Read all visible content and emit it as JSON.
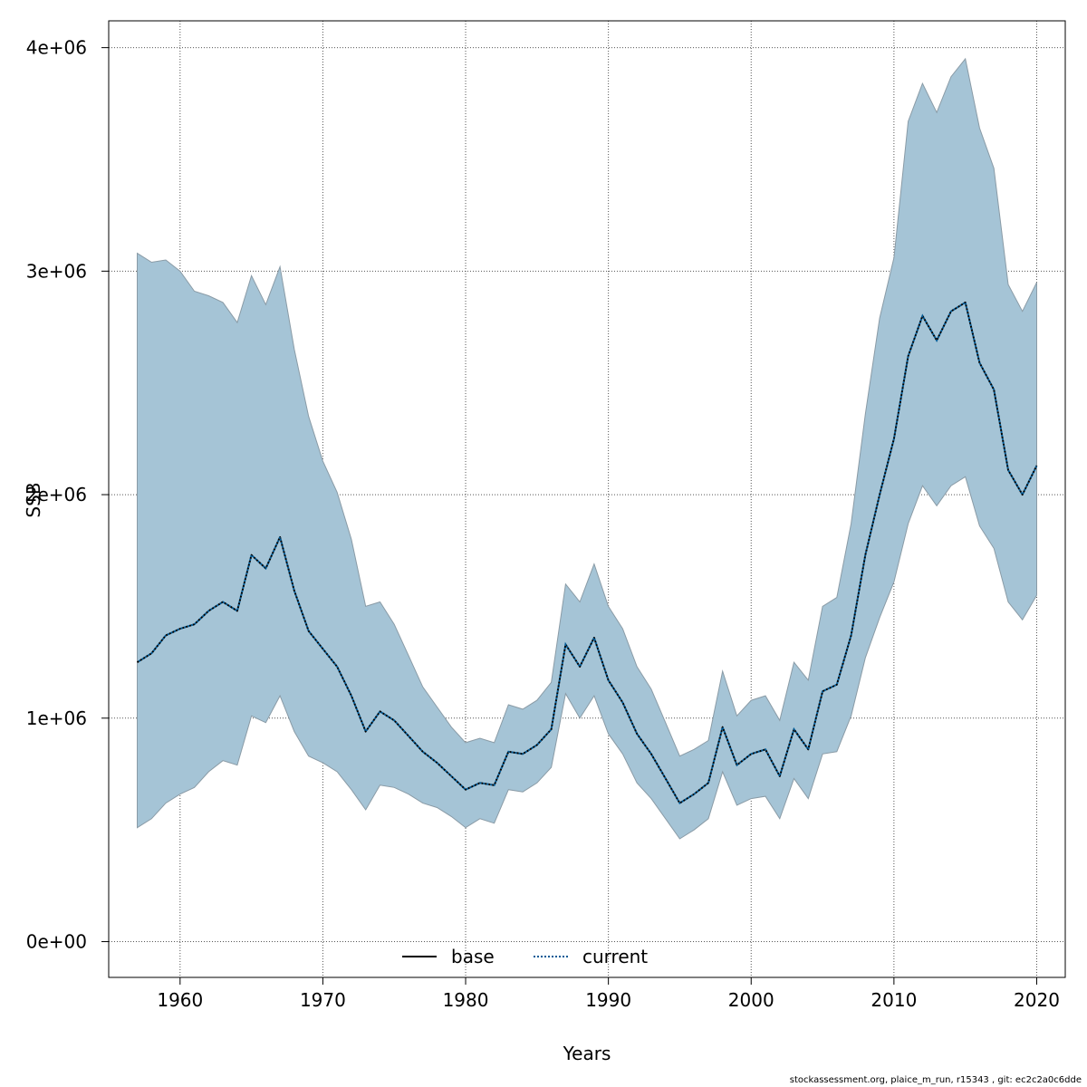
{
  "chart_data": {
    "type": "line",
    "title": "",
    "xlabel": "Years",
    "ylabel": "SSB",
    "xlim": [
      1955,
      2022
    ],
    "ylim": [
      -160000,
      4120000
    ],
    "x_ticks": [
      1960,
      1970,
      1980,
      1990,
      2000,
      2010,
      2020
    ],
    "x_tick_labels": [
      "1960",
      "1970",
      "1980",
      "1990",
      "2000",
      "2010",
      "2020"
    ],
    "y_ticks": [
      0,
      1000000,
      2000000,
      3000000,
      4000000
    ],
    "y_tick_labels": [
      "0e+00",
      "1e+06",
      "2e+06",
      "3e+06",
      "4e+06"
    ],
    "grid": true,
    "colors": {
      "band": "#a5c4d6",
      "band_edge": "#8a9ba6",
      "base": "#000000",
      "current": "#005a96"
    },
    "legend": {
      "position": "bottom-center",
      "entries": [
        {
          "label": "base",
          "style": "solid"
        },
        {
          "label": "current",
          "style": "dotted"
        }
      ]
    },
    "x": [
      1957,
      1958,
      1959,
      1960,
      1961,
      1962,
      1963,
      1964,
      1965,
      1966,
      1967,
      1968,
      1969,
      1970,
      1971,
      1972,
      1973,
      1974,
      1975,
      1976,
      1977,
      1978,
      1979,
      1980,
      1981,
      1982,
      1983,
      1984,
      1985,
      1986,
      1987,
      1988,
      1989,
      1990,
      1991,
      1992,
      1993,
      1994,
      1995,
      1996,
      1997,
      1998,
      1999,
      2000,
      2001,
      2002,
      2003,
      2004,
      2005,
      2006,
      2007,
      2008,
      2009,
      2010,
      2011,
      2012,
      2013,
      2014,
      2015,
      2016,
      2017,
      2018,
      2019,
      2020
    ],
    "series": [
      {
        "name": "base",
        "values": [
          1250000,
          1290000,
          1370000,
          1400000,
          1420000,
          1480000,
          1520000,
          1480000,
          1730000,
          1670000,
          1810000,
          1570000,
          1390000,
          1310000,
          1230000,
          1100000,
          940000,
          1030000,
          990000,
          920000,
          850000,
          800000,
          740000,
          680000,
          710000,
          700000,
          850000,
          840000,
          880000,
          950000,
          1330000,
          1230000,
          1360000,
          1170000,
          1070000,
          930000,
          840000,
          730000,
          620000,
          660000,
          710000,
          960000,
          790000,
          840000,
          860000,
          740000,
          950000,
          860000,
          1120000,
          1150000,
          1370000,
          1730000,
          2000000,
          2250000,
          2620000,
          2800000,
          2690000,
          2820000,
          2860000,
          2590000,
          2470000,
          2110000,
          2000000,
          2130000
        ]
      },
      {
        "name": "current",
        "values": [
          1250000,
          1290000,
          1370000,
          1400000,
          1420000,
          1480000,
          1520000,
          1480000,
          1730000,
          1670000,
          1810000,
          1570000,
          1390000,
          1310000,
          1230000,
          1100000,
          940000,
          1030000,
          990000,
          920000,
          850000,
          800000,
          740000,
          680000,
          710000,
          700000,
          850000,
          840000,
          880000,
          950000,
          1330000,
          1230000,
          1360000,
          1170000,
          1070000,
          930000,
          840000,
          730000,
          620000,
          660000,
          710000,
          960000,
          790000,
          840000,
          860000,
          740000,
          950000,
          860000,
          1120000,
          1150000,
          1370000,
          1730000,
          2000000,
          2250000,
          2620000,
          2800000,
          2690000,
          2820000,
          2860000,
          2590000,
          2470000,
          2110000,
          2000000,
          2130000
        ]
      }
    ],
    "band": {
      "name": "confidence interval",
      "upper": [
        3080000,
        3040000,
        3050000,
        3000000,
        2910000,
        2890000,
        2860000,
        2770000,
        2980000,
        2850000,
        3020000,
        2650000,
        2350000,
        2150000,
        2010000,
        1800000,
        1500000,
        1520000,
        1420000,
        1280000,
        1140000,
        1050000,
        960000,
        890000,
        910000,
        890000,
        1060000,
        1040000,
        1080000,
        1160000,
        1600000,
        1520000,
        1690000,
        1500000,
        1400000,
        1230000,
        1130000,
        980000,
        830000,
        860000,
        900000,
        1210000,
        1010000,
        1080000,
        1100000,
        990000,
        1250000,
        1170000,
        1500000,
        1540000,
        1870000,
        2360000,
        2790000,
        3060000,
        3670000,
        3840000,
        3710000,
        3870000,
        3950000,
        3640000,
        3460000,
        2940000,
        2820000,
        2950000
      ],
      "lower": [
        510000,
        550000,
        620000,
        660000,
        690000,
        760000,
        810000,
        790000,
        1010000,
        980000,
        1100000,
        940000,
        830000,
        800000,
        760000,
        680000,
        590000,
        700000,
        690000,
        660000,
        620000,
        600000,
        560000,
        510000,
        550000,
        530000,
        680000,
        670000,
        710000,
        780000,
        1110000,
        1000000,
        1100000,
        930000,
        840000,
        710000,
        640000,
        550000,
        460000,
        500000,
        550000,
        760000,
        610000,
        640000,
        650000,
        550000,
        730000,
        640000,
        840000,
        850000,
        1010000,
        1270000,
        1450000,
        1610000,
        1870000,
        2040000,
        1950000,
        2040000,
        2080000,
        1860000,
        1760000,
        1520000,
        1440000,
        1550000
      ]
    }
  },
  "footer": {
    "text": "stockassessment.org, plaice_m_run, r15343 , git: ec2c2a0c6dde"
  }
}
